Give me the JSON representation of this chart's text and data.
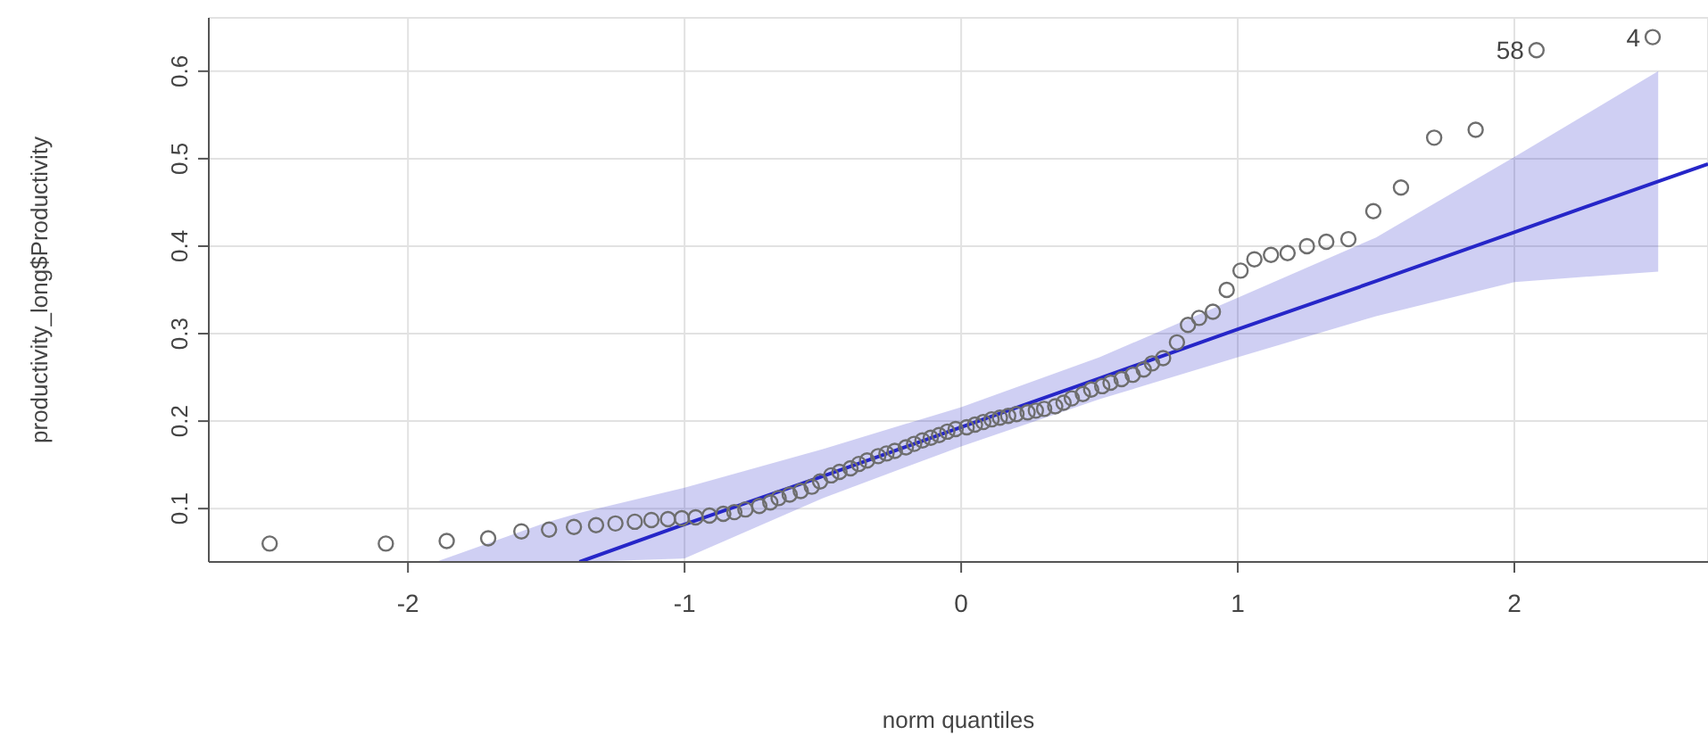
{
  "chart_data": {
    "type": "scatter",
    "xlabel": "norm quantiles",
    "ylabel": "productivity_long$Productivity",
    "xlim": [
      -2.72,
      2.7
    ],
    "ylim": [
      0.039,
      0.661
    ],
    "xticks": [
      -2,
      -1,
      0,
      1,
      2
    ],
    "yticks": [
      0.1,
      0.2,
      0.3,
      0.4,
      0.5,
      0.6
    ],
    "grid": true,
    "marker": "circle",
    "series": [
      {
        "color": "#6e6e6e",
        "x": [
          -2.5,
          -2.08,
          -1.86,
          -1.71,
          -1.59,
          -1.49,
          -1.4,
          -1.32,
          -1.25,
          -1.18,
          -1.12,
          -1.06,
          -1.01,
          -0.96,
          -0.91,
          -0.86,
          -0.82,
          -0.78,
          -0.73,
          -0.69,
          -0.66,
          -0.62,
          -0.58,
          -0.54,
          -0.51,
          -0.47,
          -0.44,
          -0.4,
          -0.37,
          -0.34,
          -0.3,
          -0.27,
          -0.24,
          -0.2,
          -0.17,
          -0.14,
          -0.11,
          -0.08,
          -0.05,
          -0.02,
          0.02,
          0.05,
          0.08,
          0.11,
          0.14,
          0.17,
          0.2,
          0.24,
          0.27,
          0.3,
          0.34,
          0.37,
          0.4,
          0.44,
          0.47,
          0.51,
          0.54,
          0.58,
          0.62,
          0.66,
          0.69,
          0.73,
          0.78,
          0.82,
          0.86,
          0.91,
          0.96,
          1.01,
          1.06,
          1.12,
          1.18,
          1.25,
          1.32,
          1.4,
          1.49,
          1.59,
          1.71,
          1.86,
          2.08,
          2.5
        ],
        "values": [
          0.06,
          0.06,
          0.063,
          0.066,
          0.074,
          0.076,
          0.079,
          0.081,
          0.083,
          0.085,
          0.087,
          0.088,
          0.089,
          0.09,
          0.092,
          0.094,
          0.096,
          0.099,
          0.103,
          0.107,
          0.112,
          0.116,
          0.12,
          0.125,
          0.131,
          0.138,
          0.142,
          0.146,
          0.151,
          0.155,
          0.16,
          0.163,
          0.166,
          0.17,
          0.174,
          0.178,
          0.181,
          0.184,
          0.188,
          0.191,
          0.193,
          0.196,
          0.199,
          0.202,
          0.204,
          0.206,
          0.208,
          0.21,
          0.212,
          0.214,
          0.217,
          0.221,
          0.226,
          0.231,
          0.236,
          0.24,
          0.244,
          0.248,
          0.253,
          0.259,
          0.266,
          0.272,
          0.29,
          0.31,
          0.318,
          0.325,
          0.35,
          0.372,
          0.385,
          0.39,
          0.392,
          0.4,
          0.405,
          0.408,
          0.44,
          0.467,
          0.524,
          0.533,
          0.624,
          0.639
        ]
      },
      {
        "type": "line",
        "color": "#2626c8",
        "marker": "none",
        "x": [
          -1.9,
          -1.5,
          -1.38,
          -1,
          -0.5,
          0,
          0.5,
          1,
          1.5,
          2,
          2.52,
          2.7
        ],
        "values": [
          null,
          null,
          0.039,
          0.082,
          0.137,
          0.193,
          0.249,
          0.305,
          0.36,
          0.416,
          0.474,
          0.494
        ],
        "lower": [
          0.039,
          0.039,
          0.039,
          0.043,
          0.112,
          0.171,
          0.225,
          0.273,
          0.32,
          0.359,
          0.371,
          null
        ],
        "upper": [
          0.039,
          0.084,
          0.095,
          0.124,
          0.168,
          0.216,
          0.273,
          0.341,
          0.41,
          0.502,
          0.6,
          null
        ]
      }
    ],
    "annotations": [
      {
        "text": "58",
        "x": 2.08,
        "y": 0.624
      },
      {
        "text": "4",
        "x": 2.5,
        "y": 0.639
      }
    ]
  }
}
